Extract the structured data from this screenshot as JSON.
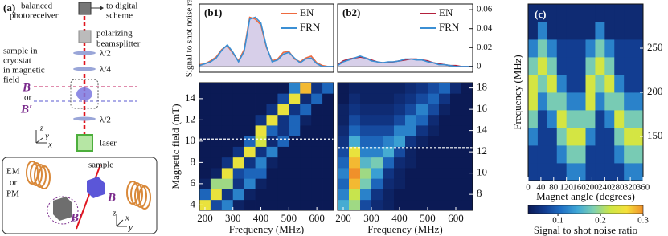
{
  "diagram": {
    "label": "(a)",
    "photoreceiver": [
      "balanced",
      "photoreceiver"
    ],
    "output": [
      "to digital",
      "scheme"
    ],
    "beamsplitter": [
      "polarizing",
      "beamsplitter"
    ],
    "sample_location": [
      "sample in",
      "cryostat",
      "in magnetic",
      "field"
    ],
    "plate_1": "λ/2",
    "plate_2": "λ/4",
    "field_1": "B",
    "field_or": "or",
    "field_2": "B′",
    "plate_3": "λ/2",
    "laser": "laser",
    "axes": [
      "z",
      "x",
      "y"
    ],
    "inset": {
      "magnet": [
        "EM",
        "or",
        "PM"
      ],
      "sample": "sample",
      "field_1": "B",
      "field_2": "B′",
      "axes": [
        "z",
        "x",
        "y"
      ]
    }
  },
  "chart_data": [
    {
      "type": "line",
      "title": "(b1)",
      "ylabel": "Signal to shot noise ratio",
      "x": [
        180,
        200,
        220,
        240,
        260,
        280,
        300,
        320,
        340,
        360,
        380,
        400,
        420,
        440,
        460,
        480,
        500,
        520,
        540,
        560,
        580,
        600,
        620,
        640,
        660
      ],
      "xlim": [
        180,
        660
      ],
      "ylim": [
        -0.006,
        0.066
      ],
      "fill": "#cdc3e3",
      "legend": "upper right",
      "series": [
        {
          "name": "EN",
          "color": "#ee6a3f",
          "values": [
            0.002,
            0.003,
            0.006,
            0.01,
            0.018,
            0.022,
            0.014,
            0.006,
            0.018,
            0.052,
            0.05,
            0.044,
            0.02,
            0.006,
            0.008,
            0.015,
            0.016,
            0.008,
            0.005,
            0.009,
            0.011,
            0.004,
            0.001,
            0,
            0
          ]
        },
        {
          "name": "FRN",
          "color": "#3b8fd4",
          "values": [
            0.001,
            0.003,
            0.005,
            0.009,
            0.017,
            0.023,
            0.015,
            0.005,
            0.016,
            0.05,
            0.052,
            0.046,
            0.021,
            0.005,
            0.007,
            0.013,
            0.015,
            0.009,
            0.004,
            0.008,
            0.009,
            0.003,
            0,
            0,
            0
          ]
        }
      ]
    },
    {
      "type": "line",
      "title": "(b2)",
      "yaxis": "right",
      "x": [
        180,
        200,
        220,
        240,
        260,
        280,
        300,
        320,
        340,
        360,
        380,
        400,
        420,
        440,
        460,
        480,
        500,
        520,
        540,
        560,
        580,
        600,
        620,
        640,
        660
      ],
      "xlim": [
        180,
        660
      ],
      "ylim": [
        -0.006,
        0.066
      ],
      "yticks": [
        0,
        0.02,
        0.04,
        0.06
      ],
      "fill": "#cdc3e3",
      "legend": "upper right",
      "series": [
        {
          "name": "EN",
          "color": "#b3203c",
          "values": [
            0.002,
            0.006,
            0.008,
            0.009,
            0.01,
            0.009,
            0.007,
            0.005,
            0.004,
            0.004,
            0.005,
            0.006,
            0.007,
            0.008,
            0.008,
            0.007,
            0.006,
            0.004,
            0.003,
            0.002,
            0.001,
            0.001,
            0,
            0,
            0
          ]
        },
        {
          "name": "FRN",
          "color": "#3b8fd4",
          "values": [
            0.001,
            0.005,
            0.007,
            0.009,
            0.011,
            0.009,
            0.006,
            0.005,
            0.004,
            0.005,
            0.005,
            0.006,
            0.008,
            0.008,
            0.007,
            0.007,
            0.005,
            0.004,
            0.002,
            0.002,
            0.001,
            0,
            0,
            0,
            0
          ]
        }
      ]
    },
    {
      "type": "heatmap",
      "xlabel": "Frequency (MHz)",
      "ylabel": "Magnetic field (mT)",
      "x": [
        200,
        240,
        280,
        320,
        360,
        400,
        440,
        480,
        520,
        560,
        600,
        640
      ],
      "y": [
        4,
        5,
        6,
        7,
        8,
        9,
        10,
        11,
        12,
        13,
        14,
        15
      ],
      "xlim": [
        180,
        660
      ],
      "ylim": [
        3.5,
        15.5
      ],
      "xticks": [
        200,
        300,
        400,
        500,
        600
      ],
      "yticks": [
        4,
        6,
        8,
        10,
        12,
        14
      ],
      "hline": 10.2,
      "clim": [
        0.03,
        0.3
      ],
      "colormap": [
        "#0b1a55",
        "#123b8f",
        "#1f6fc4",
        "#3fa7d6",
        "#7fd0b0",
        "#cde645",
        "#f5e03a",
        "#f0902a"
      ],
      "z": [
        [
          0.25,
          0.08,
          0.12,
          0.04,
          0.03,
          0.03,
          0.03,
          0.03,
          0.03,
          0.03,
          0.03,
          0.03
        ],
        [
          0.1,
          0.25,
          0.06,
          0.12,
          0.04,
          0.03,
          0.03,
          0.03,
          0.03,
          0.03,
          0.03,
          0.03
        ],
        [
          0.04,
          0.2,
          0.2,
          0.06,
          0.12,
          0.04,
          0.03,
          0.03,
          0.03,
          0.03,
          0.03,
          0.03
        ],
        [
          0.03,
          0.04,
          0.25,
          0.08,
          0.1,
          0.1,
          0.03,
          0.03,
          0.03,
          0.03,
          0.03,
          0.03
        ],
        [
          0.03,
          0.03,
          0.06,
          0.25,
          0.06,
          0.12,
          0.04,
          0.03,
          0.03,
          0.03,
          0.03,
          0.03
        ],
        [
          0.03,
          0.03,
          0.03,
          0.06,
          0.25,
          0.06,
          0.12,
          0.03,
          0.03,
          0.03,
          0.03,
          0.03
        ],
        [
          0.03,
          0.03,
          0.03,
          0.03,
          0.1,
          0.23,
          0.05,
          0.1,
          0.03,
          0.03,
          0.03,
          0.03
        ],
        [
          0.03,
          0.03,
          0.03,
          0.03,
          0.03,
          0.25,
          0.1,
          0.06,
          0.1,
          0.03,
          0.03,
          0.03
        ],
        [
          0.03,
          0.03,
          0.03,
          0.03,
          0.03,
          0.06,
          0.25,
          0.06,
          0.1,
          0.04,
          0.03,
          0.03
        ],
        [
          0.03,
          0.03,
          0.03,
          0.03,
          0.03,
          0.03,
          0.06,
          0.25,
          0.06,
          0.1,
          0.03,
          0.03
        ],
        [
          0.03,
          0.03,
          0.03,
          0.03,
          0.03,
          0.03,
          0.03,
          0.08,
          0.25,
          0.05,
          0.1,
          0.03
        ],
        [
          0.03,
          0.03,
          0.03,
          0.03,
          0.03,
          0.03,
          0.03,
          0.03,
          0.12,
          0.28,
          0.06,
          0.1
        ]
      ]
    },
    {
      "type": "heatmap",
      "xlabel": "Frequency (MHz)",
      "yaxis": "right",
      "x": [
        200,
        240,
        280,
        320,
        360,
        400,
        440,
        480,
        520,
        560,
        600,
        640
      ],
      "y": [
        7,
        8,
        9,
        10,
        11,
        12,
        13,
        14,
        15,
        16,
        17,
        18
      ],
      "xlim": [
        180,
        660
      ],
      "ylim": [
        6.5,
        18.5
      ],
      "xticks": [
        200,
        300,
        400,
        500,
        600
      ],
      "yticks": [
        8,
        10,
        12,
        14,
        16,
        18
      ],
      "hline": 12.4,
      "clim": [
        0.03,
        0.3
      ],
      "colormap": [
        "#0b1a55",
        "#123b8f",
        "#1f6fc4",
        "#3fa7d6",
        "#7fd0b0",
        "#cde645",
        "#f5e03a",
        "#f0902a"
      ],
      "z": [
        [
          0.15,
          0.2,
          0.08,
          0.05,
          0.04,
          0.03,
          0.03,
          0.03,
          0.03,
          0.03,
          0.03,
          0.03
        ],
        [
          0.12,
          0.22,
          0.12,
          0.06,
          0.04,
          0.03,
          0.03,
          0.03,
          0.03,
          0.03,
          0.03,
          0.03
        ],
        [
          0.1,
          0.28,
          0.18,
          0.1,
          0.05,
          0.04,
          0.03,
          0.03,
          0.03,
          0.03,
          0.03,
          0.03
        ],
        [
          0.12,
          0.3,
          0.2,
          0.14,
          0.06,
          0.04,
          0.03,
          0.03,
          0.03,
          0.03,
          0.03,
          0.03
        ],
        [
          0.1,
          0.28,
          0.16,
          0.18,
          0.1,
          0.05,
          0.04,
          0.03,
          0.03,
          0.03,
          0.03,
          0.03
        ],
        [
          0.08,
          0.25,
          0.12,
          0.12,
          0.15,
          0.08,
          0.04,
          0.03,
          0.03,
          0.03,
          0.03,
          0.03
        ],
        [
          0.06,
          0.15,
          0.1,
          0.1,
          0.12,
          0.14,
          0.06,
          0.04,
          0.03,
          0.03,
          0.03,
          0.03
        ],
        [
          0.05,
          0.1,
          0.08,
          0.08,
          0.08,
          0.12,
          0.12,
          0.06,
          0.04,
          0.03,
          0.03,
          0.03
        ],
        [
          0.04,
          0.08,
          0.06,
          0.06,
          0.06,
          0.08,
          0.12,
          0.1,
          0.05,
          0.03,
          0.03,
          0.03
        ],
        [
          0.04,
          0.06,
          0.05,
          0.05,
          0.05,
          0.06,
          0.08,
          0.12,
          0.08,
          0.04,
          0.03,
          0.03
        ],
        [
          0.03,
          0.05,
          0.04,
          0.04,
          0.04,
          0.05,
          0.06,
          0.08,
          0.1,
          0.06,
          0.03,
          0.03
        ],
        [
          0.03,
          0.04,
          0.04,
          0.04,
          0.04,
          0.04,
          0.05,
          0.06,
          0.08,
          0.1,
          0.05,
          0.03
        ]
      ]
    },
    {
      "type": "heatmap",
      "title": "(c)",
      "xlabel": "Magnet angle (degrees)",
      "ylabel": "Frequency (MHz)",
      "yaxis": "right",
      "x": [
        15,
        45,
        75,
        105,
        135,
        165,
        195,
        225,
        255,
        285,
        315,
        345
      ],
      "y": [
        110,
        130,
        150,
        170,
        190,
        210,
        230,
        250,
        270,
        290
      ],
      "xlim": [
        0,
        360
      ],
      "ylim": [
        100,
        300
      ],
      "xticks": [
        0,
        40,
        80,
        120,
        160,
        200,
        240,
        280,
        320,
        360
      ],
      "yticks": [
        150,
        200,
        250
      ],
      "clim": [
        0.03,
        0.3
      ],
      "colormap": [
        "#0b1a55",
        "#123b8f",
        "#1f6fc4",
        "#3fa7d6",
        "#7fd0b0",
        "#cde645",
        "#f5e03a",
        "#f0902a"
      ],
      "colorbar": {
        "label": "Signal to shot noise ratio",
        "ticks": [
          0.1,
          0.2,
          0.3
        ]
      },
      "z": [
        [
          0.07,
          0.07,
          0.07,
          0.07,
          0.12,
          0.12,
          0.07,
          0.07,
          0.07,
          0.07,
          0.12,
          0.12
        ],
        [
          0.07,
          0.07,
          0.07,
          0.12,
          0.18,
          0.18,
          0.07,
          0.07,
          0.07,
          0.12,
          0.18,
          0.18
        ],
        [
          0.12,
          0.07,
          0.07,
          0.18,
          0.23,
          0.23,
          0.12,
          0.07,
          0.07,
          0.18,
          0.23,
          0.23
        ],
        [
          0.18,
          0.07,
          0.12,
          0.23,
          0.18,
          0.18,
          0.18,
          0.07,
          0.12,
          0.23,
          0.18,
          0.18
        ],
        [
          0.23,
          0.12,
          0.18,
          0.18,
          0.12,
          0.12,
          0.23,
          0.12,
          0.18,
          0.18,
          0.12,
          0.12
        ],
        [
          0.23,
          0.18,
          0.23,
          0.12,
          0.07,
          0.07,
          0.23,
          0.18,
          0.23,
          0.12,
          0.07,
          0.07
        ],
        [
          0.18,
          0.23,
          0.18,
          0.07,
          0.07,
          0.07,
          0.18,
          0.23,
          0.18,
          0.07,
          0.07,
          0.07
        ],
        [
          0.12,
          0.18,
          0.12,
          0.07,
          0.07,
          0.07,
          0.12,
          0.18,
          0.12,
          0.07,
          0.07,
          0.07
        ],
        [
          0.05,
          0.12,
          0.05,
          0.05,
          0.05,
          0.05,
          0.05,
          0.12,
          0.05,
          0.05,
          0.05,
          0.05
        ],
        [
          0.05,
          0.05,
          0.05,
          0.05,
          0.05,
          0.05,
          0.05,
          0.05,
          0.05,
          0.05,
          0.05,
          0.05
        ]
      ]
    }
  ]
}
